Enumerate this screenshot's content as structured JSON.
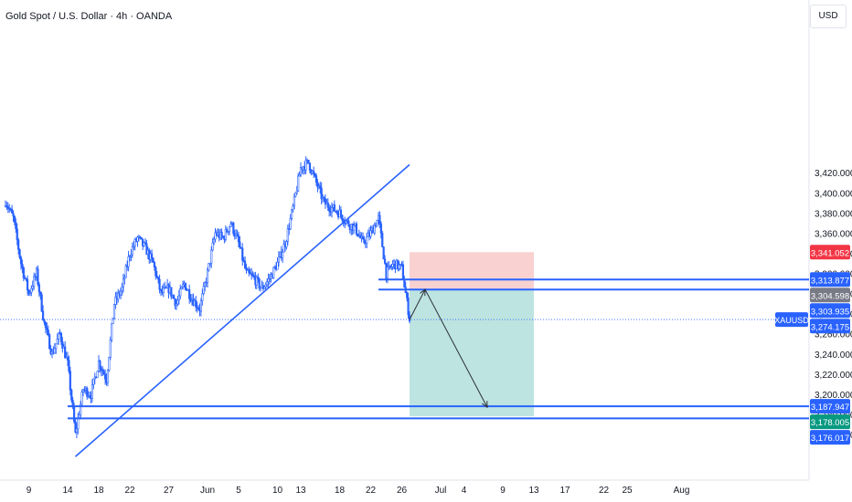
{
  "header": {
    "title": "Gold Spot / U.S. Dollar · 4h · OANDA",
    "currency": "USD"
  },
  "colors": {
    "up": "#2962ff",
    "down": "#2962ff",
    "line": "#2962ff",
    "stop_zone": "#f7c9c8",
    "target_zone": "#b2dfdb",
    "red_badge": "#f23645",
    "gray_badge": "#787b86",
    "green_badge": "#089981",
    "arrow": "#2a2e39"
  },
  "chart_data": {
    "type": "candlestick",
    "title": "Gold Spot / U.S. Dollar · 4h · OANDA",
    "ylim": [
      3150,
      3435
    ],
    "y_ticks": [
      "3,160.000",
      "3,180.000",
      "3,200.000",
      "3,220.000",
      "3,240.000",
      "3,260.000",
      "3,280.000",
      "3,300.000",
      "3,320.000",
      "3,340.000",
      "3,360.000",
      "3,380.000",
      "3,400.000",
      "3,420.000"
    ],
    "x_ticks": [
      "9",
      "14",
      "18",
      "22",
      "27",
      "Jun",
      "5",
      "10",
      "13",
      "18",
      "22",
      "26",
      "Jul",
      "4",
      "9",
      "13",
      "17",
      "22",
      "25",
      "Aug"
    ],
    "grid": false,
    "symbol": "XAUUSD",
    "current_price": 3274.175,
    "price_labels": [
      {
        "value": 3341.052,
        "text": "3,341.052",
        "color": "#f23645"
      },
      {
        "value": 3313.877,
        "text": "3,313.877",
        "color": "#2962ff"
      },
      {
        "value": 3304.598,
        "text": "3,304.598",
        "color": "#787b86"
      },
      {
        "value": 3303.935,
        "text": "3,303.935",
        "color": "#2962ff"
      },
      {
        "value": 3274.175,
        "text": "3,274.175",
        "color": "#2962ff"
      },
      {
        "value": 3187.947,
        "text": "3,187.947",
        "color": "#2962ff"
      },
      {
        "value": 3178.005,
        "text": "3,178.005",
        "color": "#089981"
      },
      {
        "value": 3176.017,
        "text": "3,176.017",
        "color": "#2962ff"
      }
    ],
    "horizontal_levels": [
      3313.877,
      3303.935,
      3187.947,
      3176.017
    ],
    "trendline": {
      "from": {
        "x": "2025-05-15",
        "y": 3138
      },
      "to": {
        "x": "2025-06-27",
        "y": 3428
      }
    },
    "position": {
      "type": "short",
      "start": "2025-06-27",
      "end": "2025-07-13",
      "entry": 3304.598,
      "stop": 3341.052,
      "target": 3178.005
    },
    "projection": [
      {
        "x": "2025-06-27",
        "y": 3274
      },
      {
        "x": "2025-06-29",
        "y": 3304
      },
      {
        "x": "2025-07-07",
        "y": 3187
      }
    ],
    "anchors": [
      [
        "2025-05-06",
        3392
      ],
      [
        "2025-05-07",
        3375
      ],
      [
        "2025-05-08",
        3330
      ],
      [
        "2025-05-09",
        3300
      ],
      [
        "2025-05-10",
        3320
      ],
      [
        "2025-05-11",
        3270
      ],
      [
        "2025-05-12",
        3240
      ],
      [
        "2025-05-13",
        3260
      ],
      [
        "2025-05-14",
        3230
      ],
      [
        "2025-05-15",
        3160
      ],
      [
        "2025-05-16",
        3205
      ],
      [
        "2025-05-17",
        3200
      ],
      [
        "2025-05-18",
        3232
      ],
      [
        "2025-05-19",
        3215
      ],
      [
        "2025-05-20",
        3290
      ],
      [
        "2025-05-21",
        3305
      ],
      [
        "2025-05-22",
        3340
      ],
      [
        "2025-05-23",
        3355
      ],
      [
        "2025-05-24",
        3345
      ],
      [
        "2025-05-25",
        3330
      ],
      [
        "2025-05-26",
        3300
      ],
      [
        "2025-05-27",
        3305
      ],
      [
        "2025-05-28",
        3290
      ],
      [
        "2025-05-29",
        3310
      ],
      [
        "2025-05-30",
        3295
      ],
      [
        "2025-05-31",
        3285
      ],
      [
        "2025-06-01",
        3320
      ],
      [
        "2025-06-02",
        3360
      ],
      [
        "2025-06-03",
        3355
      ],
      [
        "2025-06-04",
        3370
      ],
      [
        "2025-06-05",
        3350
      ],
      [
        "2025-06-06",
        3320
      ],
      [
        "2025-06-07",
        3315
      ],
      [
        "2025-06-08",
        3305
      ],
      [
        "2025-06-09",
        3315
      ],
      [
        "2025-06-10",
        3330
      ],
      [
        "2025-06-11",
        3350
      ],
      [
        "2025-06-12",
        3385
      ],
      [
        "2025-06-13",
        3425
      ],
      [
        "2025-06-14",
        3430
      ],
      [
        "2025-06-15",
        3410
      ],
      [
        "2025-06-16",
        3390
      ],
      [
        "2025-06-17",
        3385
      ],
      [
        "2025-06-18",
        3380
      ],
      [
        "2025-06-19",
        3370
      ],
      [
        "2025-06-20",
        3365
      ],
      [
        "2025-06-21",
        3350
      ],
      [
        "2025-06-22",
        3360
      ],
      [
        "2025-06-23",
        3375
      ],
      [
        "2025-06-24",
        3320
      ],
      [
        "2025-06-25",
        3330
      ],
      [
        "2025-06-26",
        3325
      ],
      [
        "2025-06-27",
        3275
      ]
    ]
  }
}
